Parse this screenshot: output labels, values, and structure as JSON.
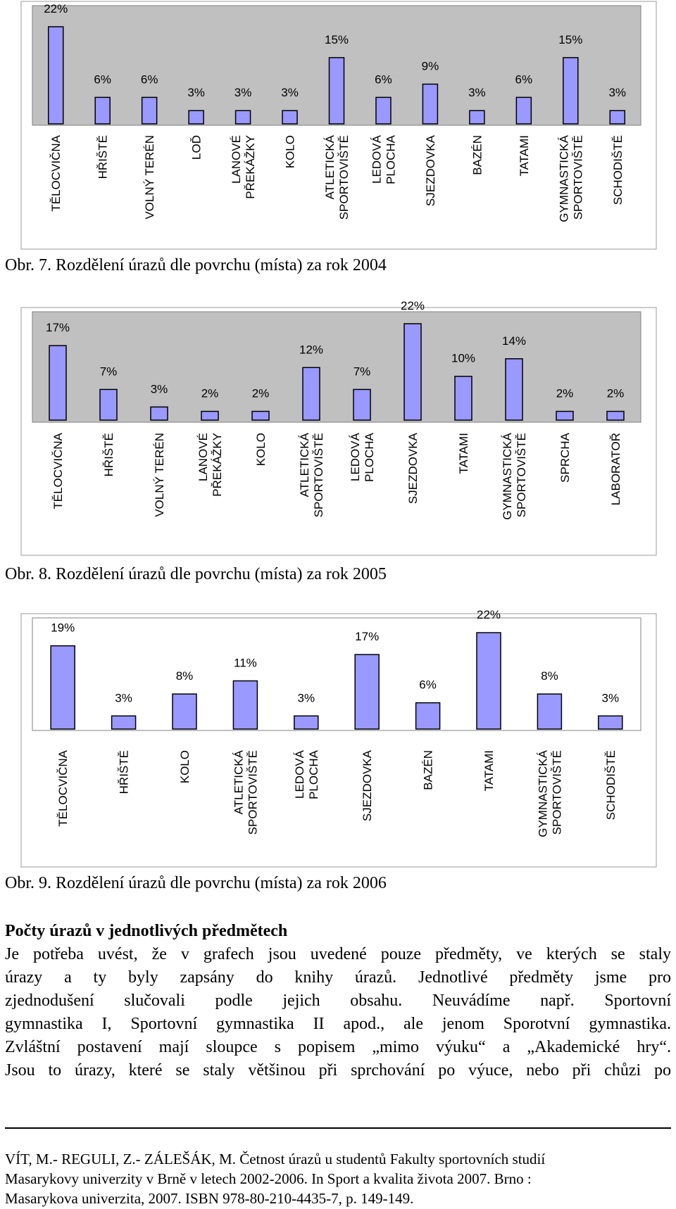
{
  "chart_data": [
    {
      "type": "bar",
      "title": "",
      "categories": [
        "TĚLOCVIČNA",
        "HŘIŠTĚ",
        "VOLNÝ TERÉN",
        "LOĎ",
        "LANOVÉ PŘEKÁŽKY",
        "KOLO",
        "ATLETICKÁ SPORTOVIŠTĚ",
        "LEDOVÁ PLOCHA",
        "SJEZDOVKA",
        "BAZÉN",
        "TATAMI",
        "GYMNASTICKÁ SPORTOVIŠTĚ",
        "SCHODIŠTĚ"
      ],
      "category_lines": [
        [
          "TĚLOCVIČNA"
        ],
        [
          "HŘIŠTĚ"
        ],
        [
          "VOLNÝ TERÉN"
        ],
        [
          "LOĎ"
        ],
        [
          "LANOVÉ",
          "PŘEKÁŽKY"
        ],
        [
          "KOLO"
        ],
        [
          "ATLETICKÁ",
          "SPORTOVIŠTĚ"
        ],
        [
          "LEDOVÁ",
          "PLOCHA"
        ],
        [
          "SJEZDOVKA"
        ],
        [
          "BAZÉN"
        ],
        [
          "TATAMI"
        ],
        [
          "GYMNASTICKÁ",
          "SPORTOVIŠTĚ"
        ],
        [
          "SCHODIŠTĚ"
        ]
      ],
      "values": [
        22,
        6,
        6,
        3,
        3,
        3,
        15,
        6,
        9,
        3,
        6,
        15,
        3
      ],
      "value_labels": [
        "22%",
        "6%",
        "6%",
        "3%",
        "3%",
        "3%",
        "15%",
        "6%",
        "9%",
        "3%",
        "6%",
        "15%",
        "3%"
      ],
      "ylim": [
        0,
        22
      ],
      "grid": false,
      "legend": "none",
      "colors": {
        "bar": "#9999ff",
        "plot_area": "#c0c0c0",
        "outline": "#000000"
      }
    },
    {
      "type": "bar",
      "title": "",
      "categories": [
        "TĚLOCVIČNA",
        "HŘIŠTĚ",
        "VOLNÝ TERÉN",
        "LANOVÉ PŘEKÁŽKY",
        "KOLO",
        "ATLETICKÁ SPORTOVIŠTĚ",
        "LEDOVÁ PLOCHA",
        "SJEZDOVKA",
        "TATAMI",
        "GYMNASTICKÁ SPORTOVIŠTĚ",
        "SPRCHA",
        "LABORATOŘ"
      ],
      "category_lines": [
        [
          "TĚLOCVIČNA"
        ],
        [
          "HŘIŠTĚ"
        ],
        [
          "VOLNÝ TERÉN"
        ],
        [
          "LANOVÉ",
          "PŘEKÁŽKY"
        ],
        [
          "KOLO"
        ],
        [
          "ATLETICKÁ",
          "SPORTOVIŠTĚ"
        ],
        [
          "LEDOVÁ",
          "PLOCHA"
        ],
        [
          "SJEZDOVKA"
        ],
        [
          "TATAMI"
        ],
        [
          "GYMNASTICKÁ",
          "SPORTOVIŠTĚ"
        ],
        [
          "SPRCHA"
        ],
        [
          "LABORATOŘ"
        ]
      ],
      "values": [
        17,
        7,
        3,
        2,
        2,
        12,
        7,
        22,
        10,
        14,
        2,
        2
      ],
      "value_labels": [
        "17%",
        "7%",
        "3%",
        "2%",
        "2%",
        "12%",
        "7%",
        "22%",
        "10%",
        "14%",
        "2%",
        "2%"
      ],
      "ylim": [
        0,
        22
      ],
      "grid": false,
      "legend": "none",
      "colors": {
        "bar": "#9999ff",
        "plot_area": "#c0c0c0",
        "outline": "#000000"
      }
    },
    {
      "type": "bar",
      "title": "",
      "categories": [
        "TĚLOCVIČNA",
        "HŘIŠTĚ",
        "KOLO",
        "ATLETICKÁ SPORTOVIŠTĚ",
        "LEDOVÁ PLOCHA",
        "SJEZDOVKA",
        "BAZÉN",
        "TATAMI",
        "GYMNASTICKÁ SPORTOVIŠTĚ",
        "SCHODIŠTĚ"
      ],
      "category_lines": [
        [
          "TĚLOCVIČNA"
        ],
        [
          "HŘIŠTĚ"
        ],
        [
          "KOLO"
        ],
        [
          "ATLETICKÁ",
          "SPORTOVIŠTĚ"
        ],
        [
          "LEDOVÁ",
          "PLOCHA"
        ],
        [
          "SJEZDOVKA"
        ],
        [
          "BAZÉN"
        ],
        [
          "TATAMI"
        ],
        [
          "GYMNASTICKÁ",
          "SPORTOVIŠTĚ"
        ],
        [
          "SCHODIŠTĚ"
        ]
      ],
      "values": [
        19,
        3,
        8,
        11,
        3,
        17,
        6,
        22,
        8,
        3
      ],
      "value_labels": [
        "19%",
        "3%",
        "8%",
        "11%",
        "3%",
        "17%",
        "6%",
        "22%",
        "8%",
        "3%"
      ],
      "ylim": [
        0,
        22
      ],
      "grid": false,
      "legend": "none",
      "colors": {
        "bar": "#9999ff",
        "plot_area": "#ffffff",
        "outline": "#000000"
      }
    }
  ],
  "captions": [
    "Obr. 7. Rozdělení úrazů dle povrchu (místa) za rok 2004",
    "Obr. 8. Rozdělení úrazů dle povrchu (místa) za rok 2005",
    "Obr. 9. Rozdělení úrazů dle povrchu (místa) za rok 2006"
  ],
  "section": {
    "heading": "Počty úrazů v jednotlivých předmětech",
    "lines": [
      "Je potřeba uvést, že v grafech jsou uvedené pouze předměty, ve kterých se staly",
      "úrazy a ty byly zapsány do knihy úrazů. Jednotlivé předměty jsme pro",
      "zjednodušení slučovali podle jejich obsahu. Neuvádíme např. Sportovní",
      "gymnastika I, Sportovní gymnastika II apod., ale jenom Sporotvní gymnastika.",
      "Zvláštní postavení mají sloupce s popisem „mimo výuku“ a „Akademické hry“.",
      "Jsou to úrazy, které se staly většinou při sprchování po výuce, nebo při chůzi po"
    ]
  },
  "footer": {
    "lines": [
      "VÍT, M.- REGULI, Z.- ZÁLEŠÁK, M. Četnost úrazů u studentů Fakulty sportovních studií",
      "Masarykovy univerzity v Brně v letech 2002-2006. In Sport a kvalita života 2007. Brno :",
      "Masarykova univerzita, 2007. ISBN 978-80-210-4435-7, p. 149-149."
    ]
  }
}
